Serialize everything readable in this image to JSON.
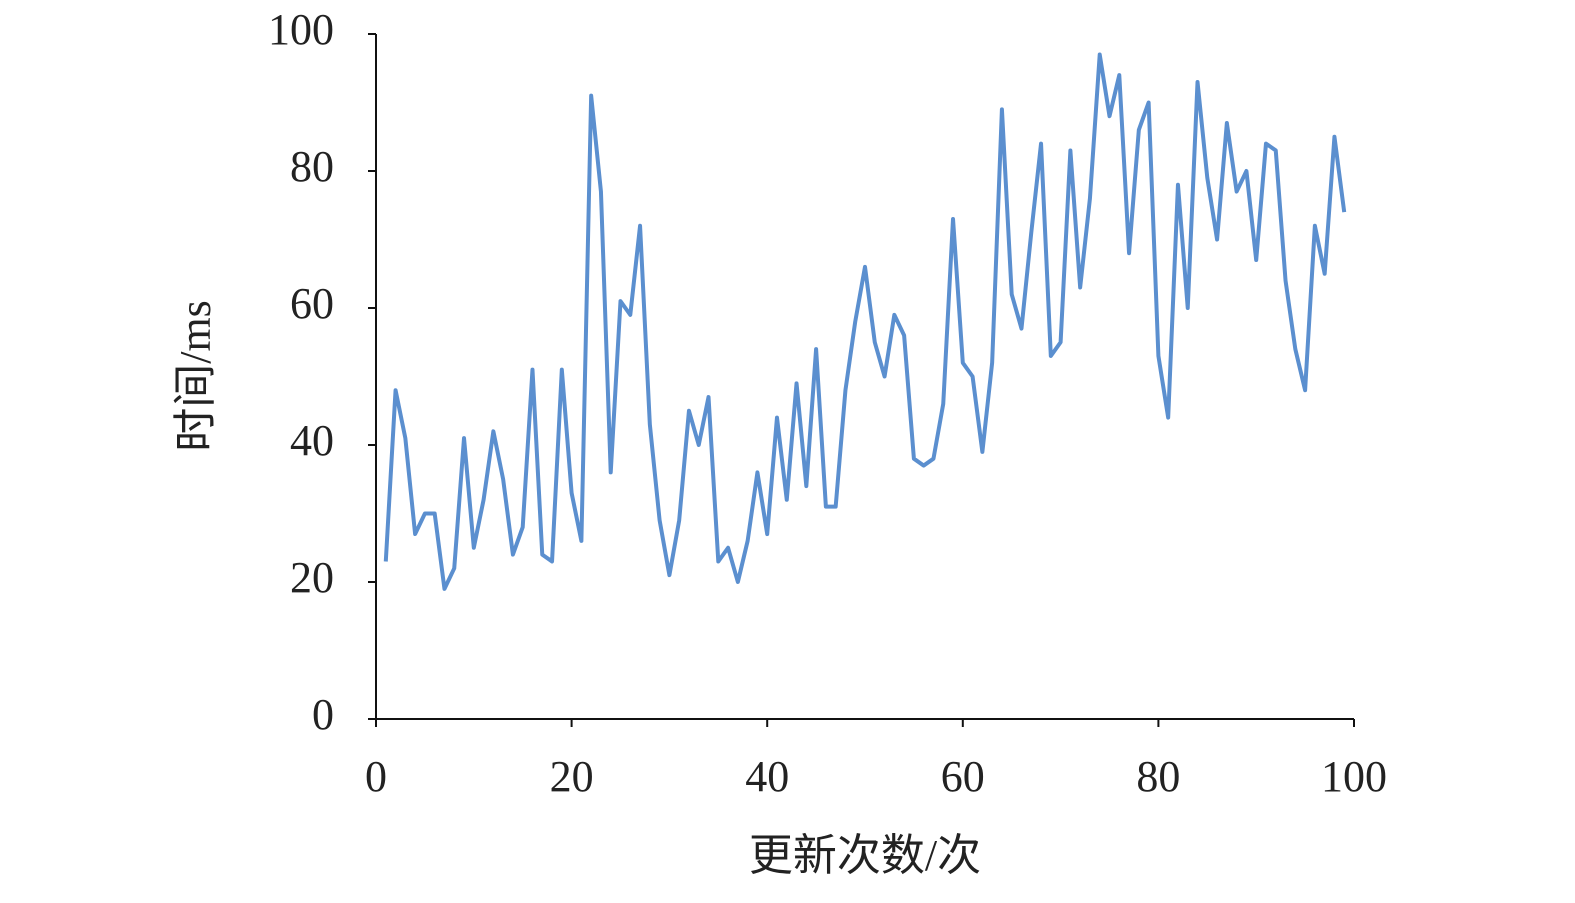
{
  "chart_data": {
    "type": "line",
    "x_label": "更新次数/次",
    "y_label": "时间/ms",
    "x": [
      1,
      2,
      3,
      4,
      5,
      6,
      7,
      8,
      9,
      10,
      11,
      12,
      13,
      14,
      15,
      16,
      17,
      18,
      19,
      20,
      21,
      22,
      23,
      24,
      25,
      26,
      27,
      28,
      29,
      30,
      31,
      32,
      33,
      34,
      35,
      36,
      37,
      38,
      39,
      40,
      41,
      42,
      43,
      44,
      45,
      46,
      47,
      48,
      49,
      50,
      51,
      52,
      53,
      54,
      55,
      56,
      57,
      58,
      59,
      60,
      61,
      62,
      63,
      64,
      65,
      66,
      67,
      68,
      69,
      70,
      71,
      72,
      73,
      74,
      75,
      76,
      77,
      78,
      79,
      80,
      81,
      82,
      83,
      84,
      85,
      86,
      87,
      88,
      89,
      90,
      91,
      92,
      93,
      94,
      95,
      96,
      97,
      98,
      99
    ],
    "series": [
      {
        "color": "#5b8fcf",
        "values": [
          23,
          48,
          41,
          27,
          30,
          30,
          19,
          22,
          41,
          25,
          32,
          42,
          35,
          24,
          28,
          51,
          24,
          23,
          51,
          33,
          26,
          91,
          77,
          36,
          61,
          59,
          72,
          43,
          29,
          21,
          29,
          45,
          40,
          47,
          23,
          25,
          20,
          26,
          36,
          27,
          44,
          32,
          49,
          34,
          54,
          31,
          31,
          48,
          58,
          66,
          55,
          50,
          59,
          56,
          38,
          37,
          38,
          46,
          73,
          52,
          50,
          39,
          52,
          89,
          62,
          57,
          71,
          84,
          53,
          55,
          83,
          63,
          76,
          97,
          88,
          94,
          68,
          86,
          90,
          53,
          44,
          78,
          60,
          93,
          79,
          70,
          87,
          77,
          80,
          67,
          84,
          83,
          64,
          54,
          48,
          72,
          65,
          85,
          74
        ]
      }
    ],
    "xlim": [
      0,
      100
    ],
    "ylim": [
      0,
      100
    ],
    "xticks": [
      0,
      20,
      40,
      60,
      80,
      100
    ],
    "yticks": [
      0,
      20,
      40,
      60,
      80,
      100
    ]
  }
}
